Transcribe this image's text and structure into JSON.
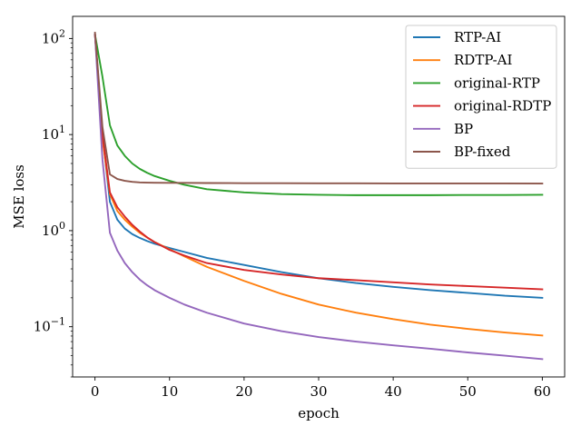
{
  "chart_data": {
    "type": "line",
    "xlabel": "epoch",
    "ylabel": "MSE loss",
    "yscale": "log",
    "xlim": [
      -3,
      63
    ],
    "ylim": [
      0.03,
      170
    ],
    "xticks": [
      {
        "value": 0,
        "label": "0"
      },
      {
        "value": 10,
        "label": "10"
      },
      {
        "value": 20,
        "label": "20"
      },
      {
        "value": 30,
        "label": "30"
      },
      {
        "value": 40,
        "label": "40"
      },
      {
        "value": 50,
        "label": "50"
      },
      {
        "value": 60,
        "label": "60"
      }
    ],
    "yticks": [
      {
        "value": 0.1,
        "base": "10",
        "exp": "−1"
      },
      {
        "value": 1,
        "base": "10",
        "exp": "0"
      },
      {
        "value": 10,
        "base": "10",
        "exp": "1"
      },
      {
        "value": 100,
        "base": "10",
        "exp": "2"
      }
    ],
    "grid": false,
    "legend_position": "top-right",
    "x": [
      0,
      1,
      2,
      3,
      4,
      5,
      6,
      7,
      8,
      10,
      12,
      15,
      20,
      25,
      30,
      35,
      40,
      45,
      50,
      55,
      60
    ],
    "series": [
      {
        "name": "RTP-AI",
        "color": "#1f77b4",
        "values": [
          110,
          10,
          2.0,
          1.3,
          1.05,
          0.92,
          0.84,
          0.78,
          0.73,
          0.66,
          0.6,
          0.52,
          0.44,
          0.37,
          0.32,
          0.285,
          0.26,
          0.24,
          0.225,
          0.21,
          0.2
        ]
      },
      {
        "name": "RDTP-AI",
        "color": "#ff7f0e",
        "values": [
          110,
          9,
          2.4,
          1.6,
          1.3,
          1.1,
          0.95,
          0.85,
          0.76,
          0.64,
          0.54,
          0.42,
          0.3,
          0.22,
          0.17,
          0.14,
          0.12,
          0.105,
          0.095,
          0.087,
          0.081
        ]
      },
      {
        "name": "original-RTP",
        "color": "#2ca02c",
        "values": [
          110,
          40,
          12.5,
          7.7,
          6.0,
          5.0,
          4.4,
          4.0,
          3.7,
          3.3,
          3.0,
          2.7,
          2.5,
          2.4,
          2.36,
          2.34,
          2.34,
          2.34,
          2.35,
          2.35,
          2.36
        ]
      },
      {
        "name": "original-RDTP",
        "color": "#d62728",
        "values": [
          110,
          10,
          2.5,
          1.75,
          1.4,
          1.15,
          0.98,
          0.85,
          0.76,
          0.63,
          0.55,
          0.46,
          0.39,
          0.35,
          0.32,
          0.305,
          0.29,
          0.275,
          0.265,
          0.255,
          0.245
        ]
      },
      {
        "name": "BP",
        "color": "#9467bd",
        "values": [
          110,
          5.5,
          0.95,
          0.62,
          0.46,
          0.37,
          0.31,
          0.27,
          0.24,
          0.2,
          0.17,
          0.14,
          0.108,
          0.09,
          0.078,
          0.07,
          0.064,
          0.059,
          0.054,
          0.05,
          0.046
        ]
      },
      {
        "name": "BP-fixed",
        "color": "#8c564b",
        "values": [
          115,
          12,
          3.85,
          3.45,
          3.3,
          3.22,
          3.18,
          3.16,
          3.15,
          3.14,
          3.14,
          3.13,
          3.12,
          3.12,
          3.11,
          3.11,
          3.1,
          3.1,
          3.1,
          3.1,
          3.09
        ]
      }
    ]
  }
}
